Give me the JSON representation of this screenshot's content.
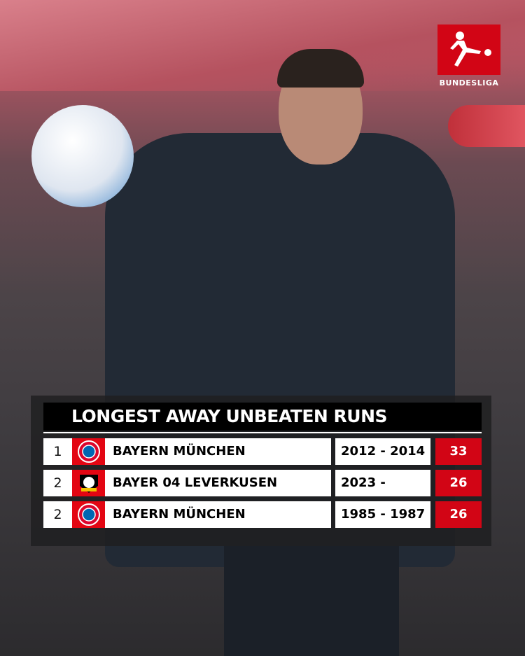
{
  "brand": {
    "name": "BUNDESLIGA",
    "color": "#d20515"
  },
  "table": {
    "title": "LONGEST AWAY UNBEATEN RUNS",
    "rows": [
      {
        "rank": "1",
        "club": "BAYERN MÜNCHEN",
        "crest": "bayern-munchen-crest",
        "years": "2012 - 2014",
        "games": "33"
      },
      {
        "rank": "2",
        "club": "BAYER 04 LEVERKUSEN",
        "crest": "bayer-leverkusen-crest",
        "years": "2023 -",
        "games": "26"
      },
      {
        "rank": "2",
        "club": "BAYERN MÜNCHEN",
        "crest": "bayern-munchen-crest",
        "years": "1985 - 1987",
        "games": "26"
      }
    ]
  }
}
